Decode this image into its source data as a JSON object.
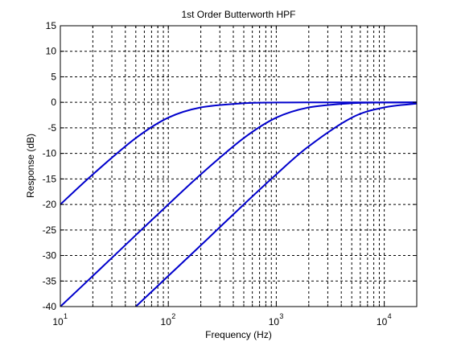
{
  "chart_data": {
    "type": "line",
    "title": "1st Order Butterworth HPF",
    "xlabel": "Frequency (Hz)",
    "ylabel": "Response (dB)",
    "xscale": "log",
    "xlim": [
      10,
      20000
    ],
    "ylim": [
      -40,
      15
    ],
    "grid": true,
    "grid_style": "dashed",
    "line_color": "#0000cc",
    "y_ticks": [
      15,
      10,
      5,
      0,
      -5,
      -10,
      -15,
      -20,
      -25,
      -30,
      -35,
      -40
    ],
    "x_decade_labels": [
      {
        "base": "10",
        "exp": "1"
      },
      {
        "base": "10",
        "exp": "2"
      },
      {
        "base": "10",
        "exp": "3"
      },
      {
        "base": "10",
        "exp": "4"
      }
    ],
    "series": [
      {
        "x": [
          10,
          20,
          50,
          100,
          200,
          500,
          1000,
          2000,
          5000,
          10000,
          20000
        ],
        "y": [
          -20,
          -14.1,
          -7.0,
          -3.0,
          -1.0,
          -0.17,
          -0.04,
          -0.01,
          0,
          0,
          0
        ]
      },
      {
        "x": [
          10,
          20,
          50,
          100,
          200,
          500,
          1000,
          2000,
          5000,
          10000,
          20000
        ],
        "y": [
          -40,
          -34.0,
          -26.0,
          -20.0,
          -14.1,
          -7.0,
          -3.0,
          -1.0,
          -0.17,
          -0.04,
          -0.01
        ]
      },
      {
        "x": [
          50,
          100,
          200,
          500,
          1000,
          2000,
          5000,
          10000,
          20000
        ],
        "y": [
          -40,
          -34.0,
          -28.0,
          -20.0,
          -14.1,
          -8.6,
          -3.0,
          -1.0,
          -0.26
        ]
      }
    ]
  }
}
